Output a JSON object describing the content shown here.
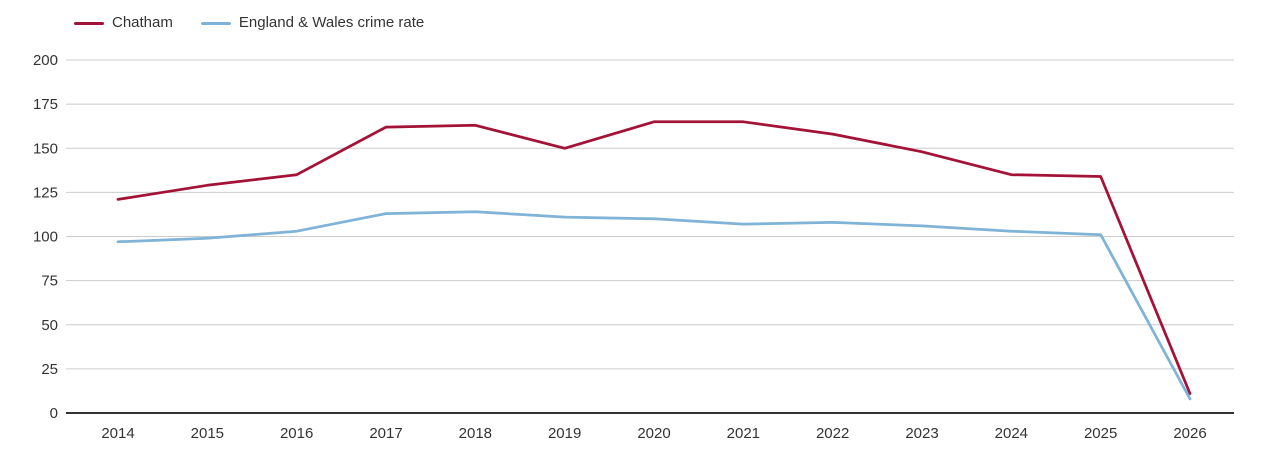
{
  "chart": {
    "legend": {
      "items": [
        {
          "label": "Chatham",
          "color": "#a31237"
        },
        {
          "label": "England & Wales crime rate",
          "color": "#7fb3d7"
        }
      ]
    }
  },
  "chart_data": {
    "type": "line",
    "title": "",
    "xlabel": "",
    "ylabel": "",
    "x": [
      2014,
      2015,
      2016,
      2017,
      2018,
      2019,
      2020,
      2021,
      2022,
      2023,
      2024,
      2025,
      2026
    ],
    "series": [
      {
        "name": "Chatham",
        "color": "#a31237",
        "values": [
          121,
          129,
          135,
          162,
          163,
          150,
          165,
          165,
          158,
          148,
          135,
          134,
          11
        ]
      },
      {
        "name": "England & Wales crime rate",
        "color": "#7fb3d7",
        "values": [
          97,
          99,
          103,
          113,
          114,
          111,
          110,
          107,
          108,
          106,
          103,
          101,
          8
        ]
      }
    ],
    "ylim": [
      0,
      200
    ],
    "ytick_step": 25,
    "yticks": [
      0,
      25,
      50,
      75,
      100,
      125,
      150,
      175,
      200
    ],
    "grid": true,
    "legend_position": "top-left",
    "colors": {
      "gridline": "#cccccc",
      "axis_line": "#333333",
      "tick_label": "#333333"
    }
  }
}
